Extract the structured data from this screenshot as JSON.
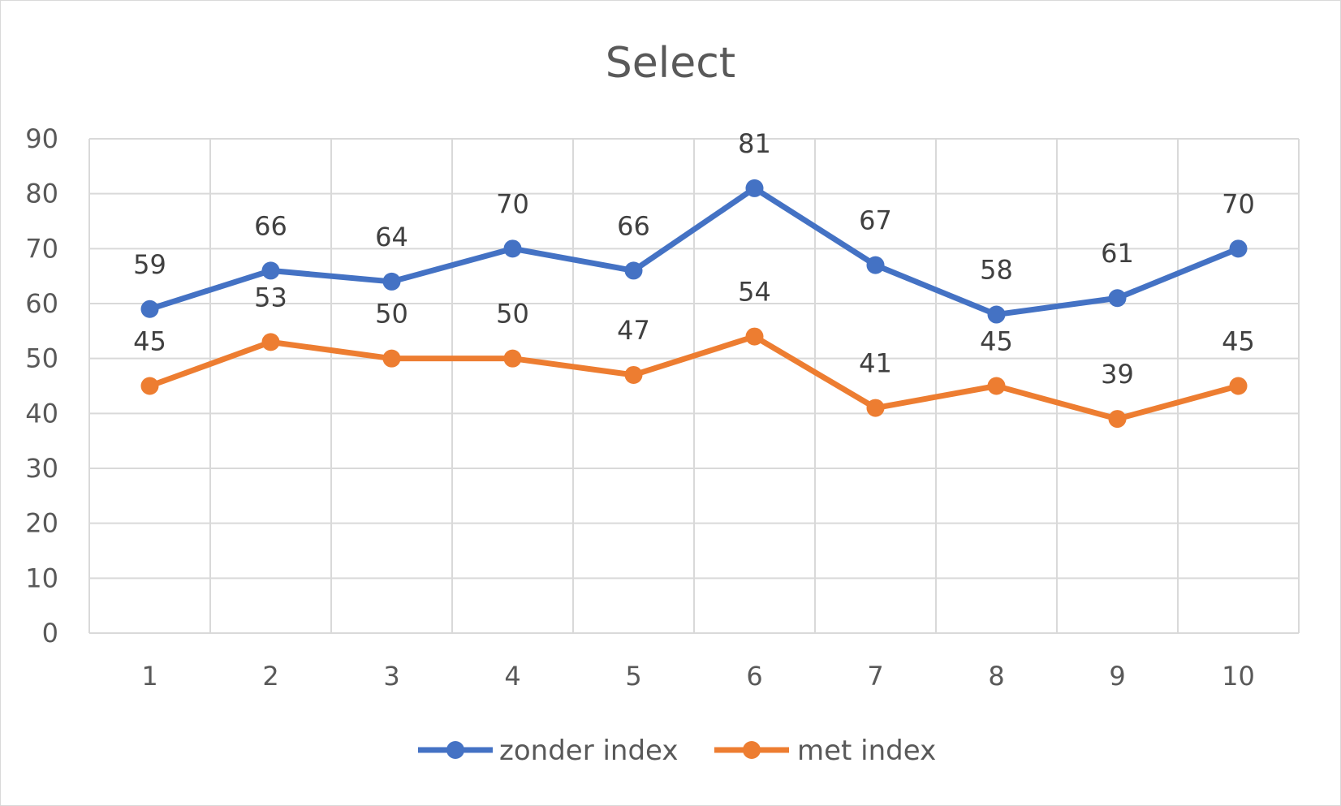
{
  "chart_data": {
    "type": "line",
    "title": "Select",
    "xlabel": "",
    "ylabel": "",
    "categories": [
      "1",
      "2",
      "3",
      "4",
      "5",
      "6",
      "7",
      "8",
      "9",
      "10"
    ],
    "ylim": [
      0,
      90
    ],
    "yticks": [
      0,
      10,
      20,
      30,
      40,
      50,
      60,
      70,
      80,
      90
    ],
    "grid": true,
    "legend_position": "bottom",
    "series": [
      {
        "name": "zonder index",
        "color": "#4472C4",
        "values": [
          59,
          66,
          64,
          70,
          66,
          81,
          67,
          58,
          61,
          70
        ]
      },
      {
        "name": "met index",
        "color": "#ED7D31",
        "values": [
          45,
          53,
          50,
          50,
          47,
          54,
          41,
          45,
          39,
          45
        ]
      }
    ]
  }
}
